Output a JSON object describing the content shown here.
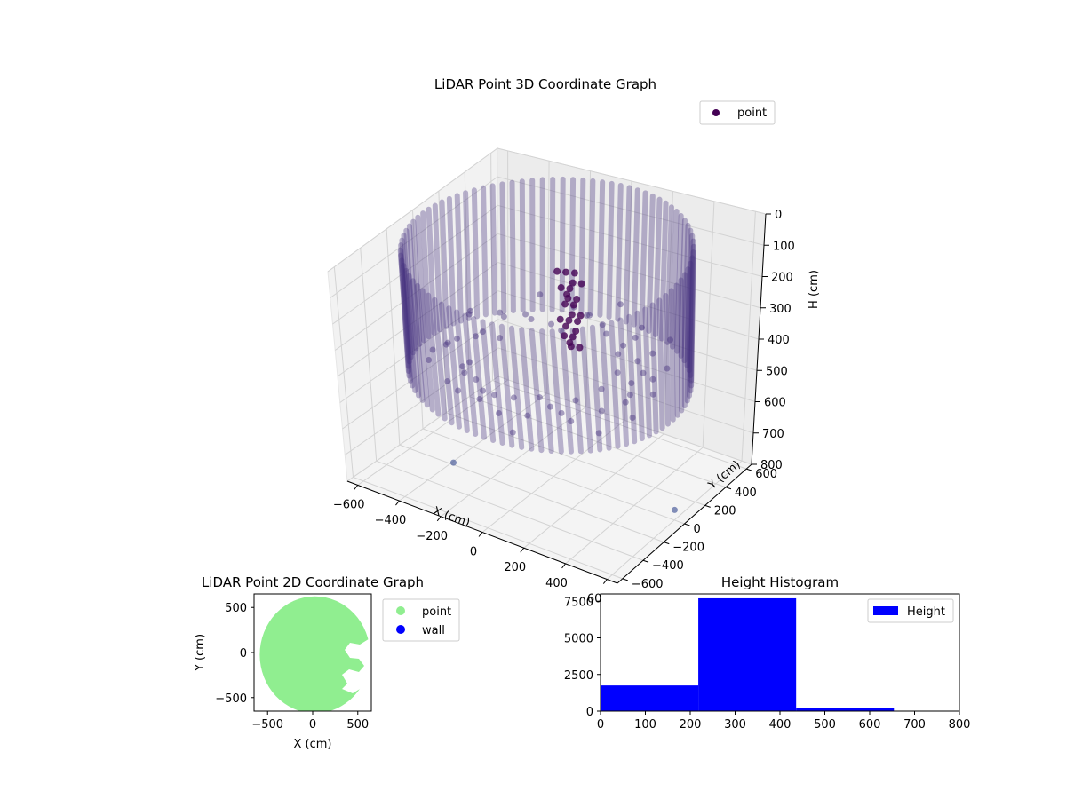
{
  "chart_data": [
    {
      "type": "scatter3d",
      "title": "LiDAR Point 3D Coordinate Graph",
      "xlabel": "X (cm)",
      "ylabel": "Y (cm)",
      "zlabel": "H (cm)",
      "xlim": [
        -650,
        650
      ],
      "ylim": [
        -650,
        650
      ],
      "zlim": [
        0,
        800
      ],
      "z_inverted": true,
      "xticks": [
        -600,
        -400,
        -200,
        0,
        200,
        400,
        600
      ],
      "yticks": [
        -600,
        -400,
        -200,
        0,
        200,
        400,
        600
      ],
      "zticks": [
        0,
        100,
        200,
        300,
        400,
        500,
        600,
        700,
        800
      ],
      "grid": true,
      "legend": {
        "position": "top-right",
        "entries": [
          {
            "label": "point",
            "color": "#440154"
          }
        ]
      },
      "point_color": "#46327e",
      "wall": {
        "shape": "circle",
        "center": [
          0,
          0
        ],
        "radius": 600,
        "height_range": [
          0,
          450
        ]
      },
      "notable_points": [
        {
          "x": -420,
          "y": -140,
          "h": 820
        },
        {
          "x": 560,
          "y": 80,
          "h": 800
        }
      ]
    },
    {
      "type": "scatter",
      "title": "LiDAR Point 2D Coordinate Graph",
      "xlabel": "X (cm)",
      "ylabel": "Y (cm)",
      "xlim": [
        -650,
        650
      ],
      "ylim": [
        -650,
        650
      ],
      "xticks": [
        -500,
        0,
        500
      ],
      "yticks": [
        -500,
        0,
        500
      ],
      "legend": {
        "position": "outside-right",
        "entries": [
          {
            "label": "point",
            "color": "#90ee90"
          },
          {
            "label": "wall",
            "color": "#0000ff"
          }
        ]
      },
      "fill_region": {
        "shape": "circle",
        "center": [
          0,
          0
        ],
        "radius": 600,
        "color": "#90ee90"
      }
    },
    {
      "type": "histogram",
      "title": "Height Histogram",
      "xlabel": "",
      "ylabel": "",
      "xlim": [
        0,
        800
      ],
      "ylim": [
        0,
        8000
      ],
      "xticks": [
        0,
        100,
        200,
        300,
        400,
        500,
        600,
        700,
        800
      ],
      "yticks": [
        0,
        2500,
        5000,
        7500
      ],
      "color": "#0000ff",
      "legend": {
        "position": "top-right",
        "entries": [
          {
            "label": "Height",
            "color": "#0000ff"
          }
        ]
      },
      "bins": [
        {
          "start": 0,
          "end": 218,
          "count": 1750
        },
        {
          "start": 218,
          "end": 436,
          "count": 7700
        },
        {
          "start": 436,
          "end": 654,
          "count": 220
        }
      ]
    }
  ]
}
